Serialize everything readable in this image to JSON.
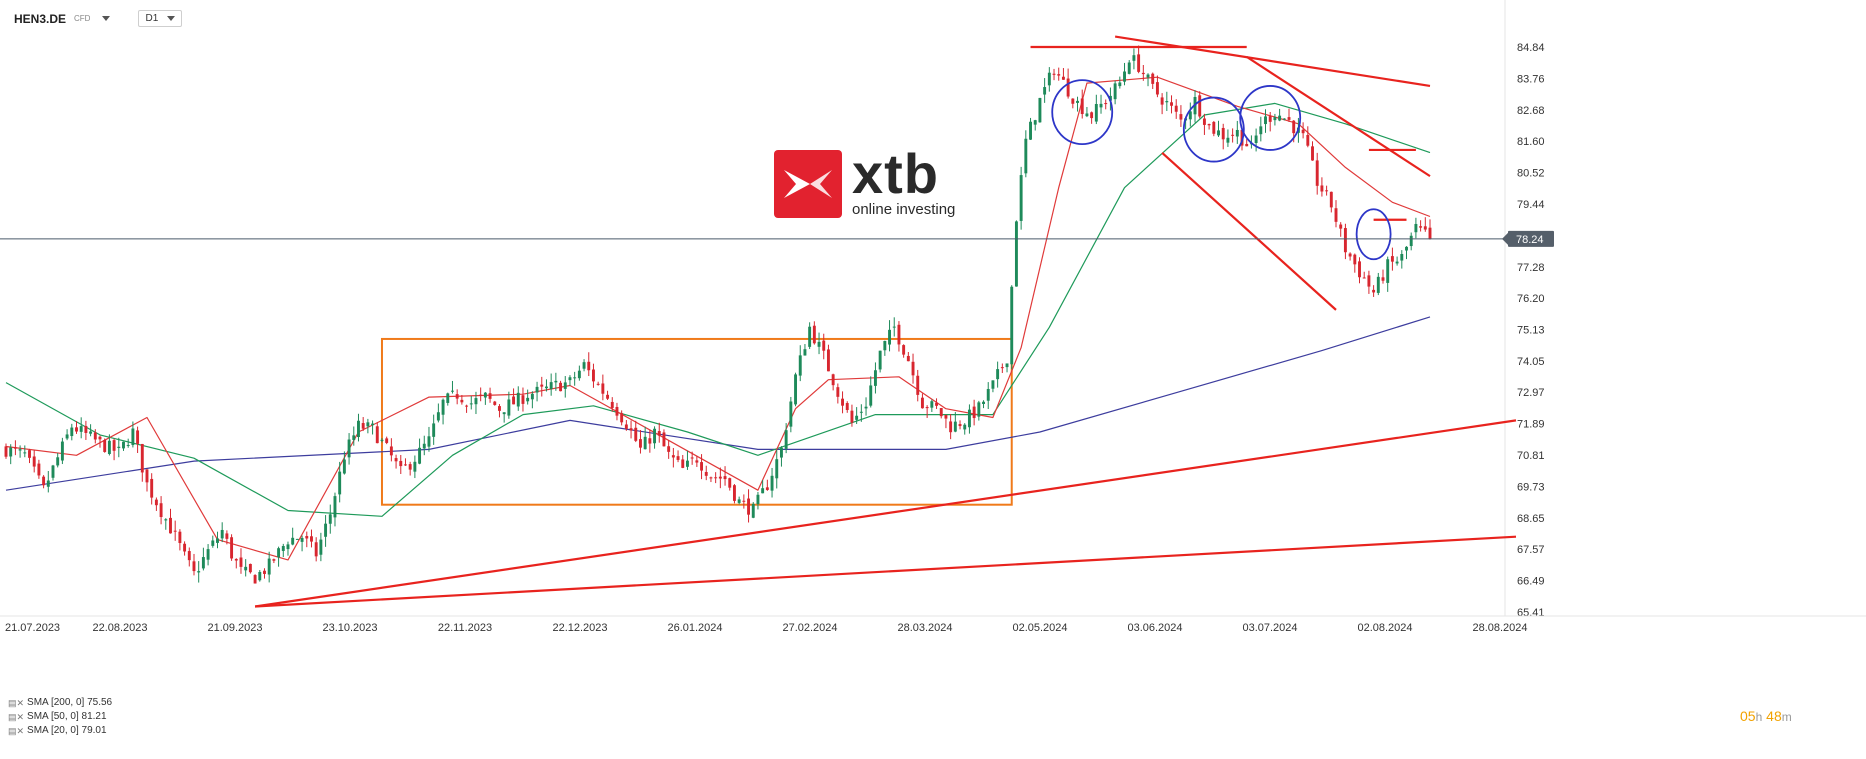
{
  "header": {
    "symbol": "HEN3.DE",
    "instrument_type": "CFD",
    "timeframe": "D1"
  },
  "logo": {
    "name": "xtb",
    "tagline": "online investing",
    "color": "#e2222f"
  },
  "legend": [
    {
      "label": "SMA [200, 0] 75.56",
      "color": "#3d3d9e"
    },
    {
      "label": "SMA [50, 0] 81.21",
      "color": "#1e9a5a"
    },
    {
      "label": "SMA [20, 0] 79.01",
      "color": "#e03a3a"
    }
  ],
  "timer": {
    "hours": "05",
    "h_unit": "h",
    "minutes": "48",
    "m_unit": "m"
  },
  "chart_data": {
    "type": "candlestick",
    "x_ticks": [
      "21.07.2023",
      "22.08.2023",
      "21.09.2023",
      "23.10.2023",
      "22.11.2023",
      "22.12.2023",
      "26.01.2024",
      "27.02.2024",
      "28.03.2024",
      "02.05.2024",
      "03.06.2024",
      "03.07.2024",
      "02.08.2024",
      "28.08.2024"
    ],
    "y_ticks": [
      84.84,
      83.76,
      82.68,
      81.6,
      80.52,
      79.44,
      77.28,
      76.2,
      75.13,
      74.05,
      72.97,
      71.89,
      70.81,
      69.73,
      68.65,
      67.57,
      66.49,
      65.41
    ],
    "ylim": [
      65.41,
      84.84
    ],
    "current_price": 78.24,
    "colors": {
      "up": "#1e8a5a",
      "down": "#d8262f",
      "sma200": "#3d3d9e",
      "sma50": "#1e9a5a",
      "sma20": "#e03a3a",
      "annotation": "#e8231e",
      "range_box": "#f07a1a",
      "circle": "#2d36c8",
      "price_line": "#4a5a6a"
    },
    "close_path": [
      [
        0,
        71.0
      ],
      [
        4,
        70.8
      ],
      [
        8,
        69.6
      ],
      [
        11,
        70.7
      ],
      [
        14,
        71.8
      ],
      [
        17,
        71.5
      ],
      [
        20,
        71.2
      ],
      [
        24,
        70.9
      ],
      [
        27,
        71.6
      ],
      [
        30,
        69.8
      ],
      [
        33,
        68.9
      ],
      [
        36,
        68.0
      ],
      [
        38,
        67.3
      ],
      [
        40,
        66.7
      ],
      [
        43,
        67.5
      ],
      [
        46,
        68.2
      ],
      [
        48,
        67.4
      ],
      [
        50,
        66.8
      ],
      [
        53,
        66.6
      ],
      [
        56,
        67.0
      ],
      [
        60,
        67.9
      ],
      [
        63,
        68.0
      ],
      [
        66,
        67.4
      ],
      [
        69,
        68.8
      ],
      [
        72,
        70.8
      ],
      [
        75,
        71.8
      ],
      [
        78,
        71.7
      ],
      [
        81,
        71.0
      ],
      [
        84,
        70.2
      ],
      [
        87,
        70.7
      ],
      [
        90,
        71.3
      ],
      [
        93,
        72.6
      ],
      [
        96,
        72.9
      ],
      [
        99,
        72.6
      ],
      [
        102,
        72.8
      ],
      [
        105,
        72.4
      ],
      [
        108,
        72.6
      ],
      [
        111,
        72.9
      ],
      [
        114,
        73.0
      ],
      [
        117,
        73.2
      ],
      [
        120,
        73.3
      ],
      [
        123,
        73.9
      ],
      [
        126,
        73.2
      ],
      [
        129,
        72.6
      ],
      [
        132,
        71.9
      ],
      [
        135,
        71.0
      ],
      [
        138,
        71.6
      ],
      [
        141,
        70.8
      ],
      [
        144,
        70.3
      ],
      [
        147,
        70.7
      ],
      [
        150,
        70.1
      ],
      [
        153,
        70.0
      ],
      [
        156,
        69.2
      ],
      [
        159,
        68.9
      ],
      [
        162,
        69.8
      ],
      [
        165,
        71.0
      ],
      [
        168,
        73.5
      ],
      [
        171,
        75.2
      ],
      [
        174,
        74.2
      ],
      [
        177,
        73.0
      ],
      [
        180,
        71.9
      ],
      [
        183,
        72.6
      ],
      [
        186,
        74.3
      ],
      [
        189,
        75.2
      ],
      [
        192,
        74.1
      ],
      [
        195,
        72.6
      ],
      [
        198,
        72.4
      ],
      [
        201,
        71.8
      ],
      [
        204,
        72.0
      ],
      [
        207,
        72.4
      ],
      [
        210,
        73.2
      ],
      [
        213,
        74.2
      ],
      [
        215,
        79.0
      ],
      [
        217,
        81.6
      ],
      [
        220,
        83.0
      ],
      [
        223,
        84.1
      ],
      [
        225,
        83.6
      ],
      [
        228,
        82.9
      ],
      [
        231,
        82.5
      ],
      [
        234,
        83.0
      ],
      [
        237,
        83.6
      ],
      [
        239,
        84.5
      ],
      [
        241,
        84.2
      ],
      [
        244,
        83.4
      ],
      [
        247,
        82.9
      ],
      [
        250,
        82.3
      ],
      [
        253,
        83.0
      ],
      [
        256,
        82.1
      ],
      [
        259,
        81.8
      ],
      [
        262,
        81.9
      ],
      [
        265,
        81.3
      ],
      [
        267,
        82.2
      ],
      [
        270,
        82.6
      ],
      [
        273,
        82.3
      ],
      [
        276,
        81.7
      ],
      [
        279,
        80.2
      ],
      [
        282,
        79.4
      ],
      [
        285,
        77.9
      ],
      [
        288,
        77.1
      ],
      [
        291,
        76.4
      ],
      [
        294,
        77.3
      ],
      [
        297,
        77.6
      ],
      [
        300,
        78.6
      ],
      [
        303,
        78.24
      ]
    ],
    "sma200": [
      [
        0,
        69.6
      ],
      [
        40,
        70.6
      ],
      [
        90,
        71.0
      ],
      [
        120,
        72.0
      ],
      [
        160,
        71.0
      ],
      [
        200,
        71.0
      ],
      [
        220,
        71.6
      ],
      [
        250,
        73.0
      ],
      [
        280,
        74.4
      ],
      [
        303,
        75.56
      ]
    ],
    "sma50": [
      [
        0,
        73.3
      ],
      [
        20,
        71.5
      ],
      [
        40,
        70.7
      ],
      [
        60,
        68.9
      ],
      [
        80,
        68.7
      ],
      [
        95,
        70.8
      ],
      [
        110,
        72.2
      ],
      [
        125,
        72.5
      ],
      [
        145,
        71.6
      ],
      [
        160,
        70.8
      ],
      [
        185,
        72.2
      ],
      [
        210,
        72.2
      ],
      [
        222,
        75.2
      ],
      [
        238,
        80.0
      ],
      [
        255,
        82.5
      ],
      [
        270,
        82.9
      ],
      [
        285,
        82.2
      ],
      [
        303,
        81.21
      ]
    ],
    "sma20": [
      [
        0,
        71.1
      ],
      [
        15,
        70.8
      ],
      [
        30,
        72.1
      ],
      [
        45,
        67.9
      ],
      [
        60,
        67.2
      ],
      [
        75,
        71.6
      ],
      [
        90,
        72.8
      ],
      [
        110,
        72.9
      ],
      [
        120,
        73.2
      ],
      [
        140,
        71.4
      ],
      [
        160,
        69.6
      ],
      [
        168,
        72.4
      ],
      [
        175,
        73.4
      ],
      [
        190,
        73.5
      ],
      [
        200,
        72.4
      ],
      [
        210,
        72.1
      ],
      [
        216,
        74.5
      ],
      [
        224,
        80.0
      ],
      [
        230,
        83.6
      ],
      [
        245,
        83.8
      ],
      [
        262,
        82.8
      ],
      [
        275,
        82.2
      ],
      [
        285,
        80.7
      ],
      [
        295,
        79.5
      ],
      [
        303,
        79.01
      ]
    ],
    "range_box": {
      "x_from": 80,
      "x_to": 214,
      "y_from": 69.1,
      "y_to": 74.8
    },
    "support_lines": [
      {
        "from": [
          53,
          65.6
        ],
        "to": [
          303,
          72.0
        ]
      },
      {
        "from": [
          53,
          65.6
        ],
        "to": [
          303,
          68.0
        ]
      }
    ],
    "trend_lines": [
      {
        "from": [
          218,
          84.84
        ],
        "to": [
          264,
          84.84
        ]
      },
      {
        "from": [
          236,
          85.2
        ],
        "to": [
          303,
          83.5
        ]
      },
      {
        "from": [
          264,
          84.5
        ],
        "to": [
          303,
          80.4
        ]
      },
      {
        "from": [
          246,
          81.2
        ],
        "to": [
          283,
          75.8
        ]
      },
      {
        "from": [
          290,
          81.3
        ],
        "to": [
          300,
          81.3
        ]
      },
      {
        "from": [
          291,
          78.9
        ],
        "to": [
          298,
          78.9
        ]
      }
    ],
    "circles": [
      [
        229,
        82.6
      ],
      [
        257,
        82.0
      ],
      [
        269,
        82.4
      ],
      [
        291,
        78.4
      ]
    ]
  }
}
